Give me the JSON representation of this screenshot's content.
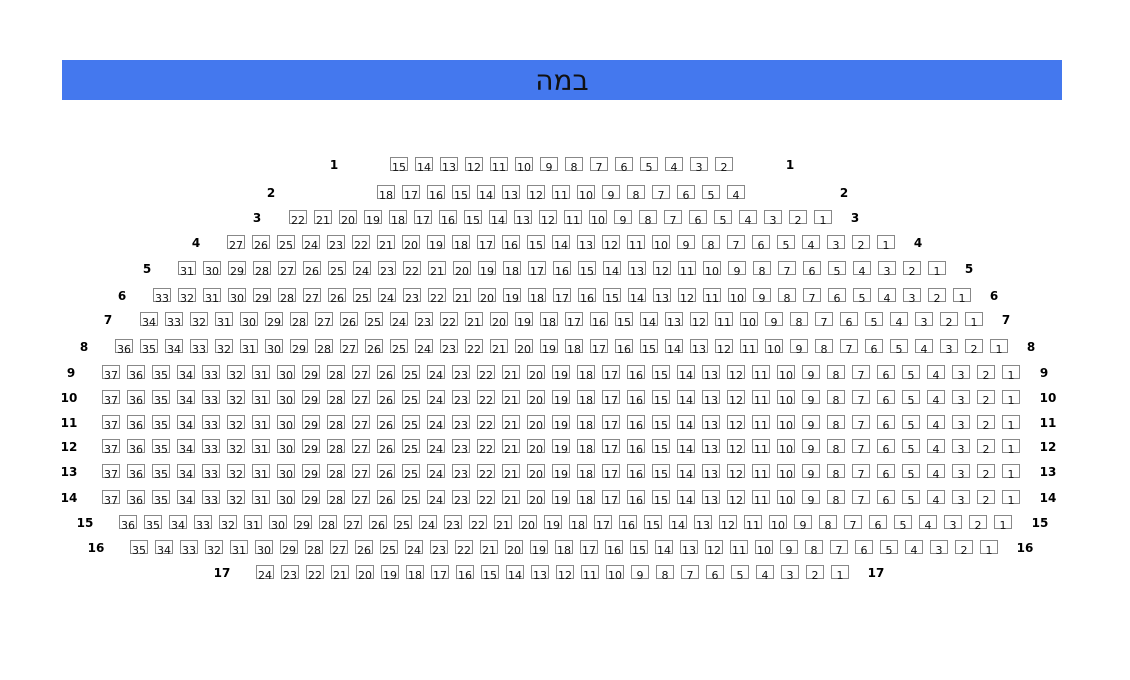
{
  "stage": {
    "label": "במה",
    "color": "#4478ee"
  },
  "rows": [
    {
      "row": "1",
      "seats": [
        15,
        14,
        13,
        12,
        11,
        10,
        9,
        8,
        7,
        6,
        5,
        4,
        3,
        2
      ]
    },
    {
      "row": "2",
      "seats": [
        18,
        17,
        16,
        15,
        14,
        13,
        12,
        11,
        10,
        9,
        8,
        7,
        6,
        5,
        4
      ]
    },
    {
      "row": "3",
      "seats": [
        22,
        21,
        20,
        19,
        18,
        17,
        16,
        15,
        14,
        13,
        12,
        11,
        10,
        9,
        8,
        7,
        6,
        5,
        4,
        3,
        2,
        1
      ]
    },
    {
      "row": "4",
      "seats": [
        27,
        26,
        25,
        24,
        23,
        22,
        21,
        20,
        19,
        18,
        17,
        16,
        15,
        14,
        13,
        12,
        11,
        10,
        9,
        8,
        7,
        6,
        5,
        4,
        3,
        2,
        1
      ]
    },
    {
      "row": "5",
      "seats": [
        31,
        30,
        29,
        28,
        27,
        26,
        25,
        24,
        23,
        22,
        21,
        20,
        19,
        18,
        17,
        16,
        15,
        14,
        13,
        12,
        11,
        10,
        9,
        8,
        7,
        6,
        5,
        4,
        3,
        2,
        1
      ]
    },
    {
      "row": "6",
      "seats": [
        33,
        32,
        31,
        30,
        29,
        28,
        27,
        26,
        25,
        24,
        23,
        22,
        21,
        20,
        19,
        18,
        17,
        16,
        15,
        14,
        13,
        12,
        11,
        10,
        9,
        8,
        7,
        6,
        5,
        4,
        3,
        2,
        1
      ]
    },
    {
      "row": "7",
      "seats": [
        34,
        33,
        32,
        31,
        30,
        29,
        28,
        27,
        26,
        25,
        24,
        23,
        22,
        21,
        20,
        19,
        18,
        17,
        16,
        15,
        14,
        13,
        12,
        11,
        10,
        9,
        8,
        7,
        6,
        5,
        4,
        3,
        2,
        1
      ]
    },
    {
      "row": "8",
      "seats": [
        36,
        35,
        34,
        33,
        32,
        31,
        30,
        29,
        28,
        27,
        26,
        25,
        24,
        23,
        22,
        21,
        20,
        19,
        18,
        17,
        16,
        15,
        14,
        13,
        12,
        11,
        10,
        9,
        8,
        7,
        6,
        5,
        4,
        3,
        2,
        1
      ]
    },
    {
      "row": "9",
      "seats": [
        37,
        36,
        35,
        34,
        33,
        32,
        31,
        30,
        29,
        28,
        27,
        26,
        25,
        24,
        23,
        22,
        21,
        20,
        19,
        18,
        17,
        16,
        15,
        14,
        13,
        12,
        11,
        10,
        9,
        8,
        7,
        6,
        5,
        4,
        3,
        2,
        1
      ]
    },
    {
      "row": "10",
      "seats": [
        37,
        36,
        35,
        34,
        33,
        32,
        31,
        30,
        29,
        28,
        27,
        26,
        25,
        24,
        23,
        22,
        21,
        20,
        19,
        18,
        17,
        16,
        15,
        14,
        13,
        12,
        11,
        10,
        9,
        8,
        7,
        6,
        5,
        4,
        3,
        2,
        1
      ]
    },
    {
      "row": "11",
      "seats": [
        37,
        36,
        35,
        34,
        33,
        32,
        31,
        30,
        29,
        28,
        27,
        26,
        25,
        24,
        23,
        22,
        21,
        20,
        19,
        18,
        17,
        16,
        15,
        14,
        13,
        12,
        11,
        10,
        9,
        8,
        7,
        6,
        5,
        4,
        3,
        2,
        1
      ]
    },
    {
      "row": "12",
      "seats": [
        37,
        36,
        35,
        34,
        33,
        32,
        31,
        30,
        29,
        28,
        27,
        26,
        25,
        24,
        23,
        22,
        21,
        20,
        19,
        18,
        17,
        16,
        15,
        14,
        13,
        12,
        11,
        10,
        9,
        8,
        7,
        6,
        5,
        4,
        3,
        2,
        1
      ]
    },
    {
      "row": "13",
      "seats": [
        37,
        36,
        35,
        34,
        33,
        32,
        31,
        30,
        29,
        28,
        27,
        26,
        25,
        24,
        23,
        22,
        21,
        20,
        19,
        18,
        17,
        16,
        15,
        14,
        13,
        12,
        11,
        10,
        9,
        8,
        7,
        6,
        5,
        4,
        3,
        2,
        1
      ]
    },
    {
      "row": "14",
      "seats": [
        37,
        36,
        35,
        34,
        33,
        32,
        31,
        30,
        29,
        28,
        27,
        26,
        25,
        24,
        23,
        22,
        21,
        20,
        19,
        18,
        17,
        16,
        15,
        14,
        13,
        12,
        11,
        10,
        9,
        8,
        7,
        6,
        5,
        4,
        3,
        2,
        1
      ]
    },
    {
      "row": "15",
      "seats": [
        36,
        35,
        34,
        33,
        32,
        31,
        30,
        29,
        28,
        27,
        26,
        25,
        24,
        23,
        22,
        21,
        20,
        19,
        18,
        17,
        16,
        15,
        14,
        13,
        12,
        11,
        10,
        9,
        8,
        7,
        6,
        5,
        4,
        3,
        2,
        1
      ]
    },
    {
      "row": "16",
      "seats": [
        35,
        34,
        33,
        32,
        31,
        30,
        29,
        28,
        27,
        26,
        25,
        24,
        23,
        22,
        21,
        20,
        19,
        18,
        17,
        16,
        15,
        14,
        13,
        12,
        11,
        10,
        9,
        8,
        7,
        6,
        5,
        4,
        3,
        2,
        1
      ]
    },
    {
      "row": "17",
      "seats": [
        24,
        23,
        22,
        21,
        20,
        19,
        18,
        17,
        16,
        15,
        14,
        13,
        12,
        11,
        10,
        9,
        8,
        7,
        6,
        5,
        4,
        3,
        2,
        1
      ]
    }
  ]
}
